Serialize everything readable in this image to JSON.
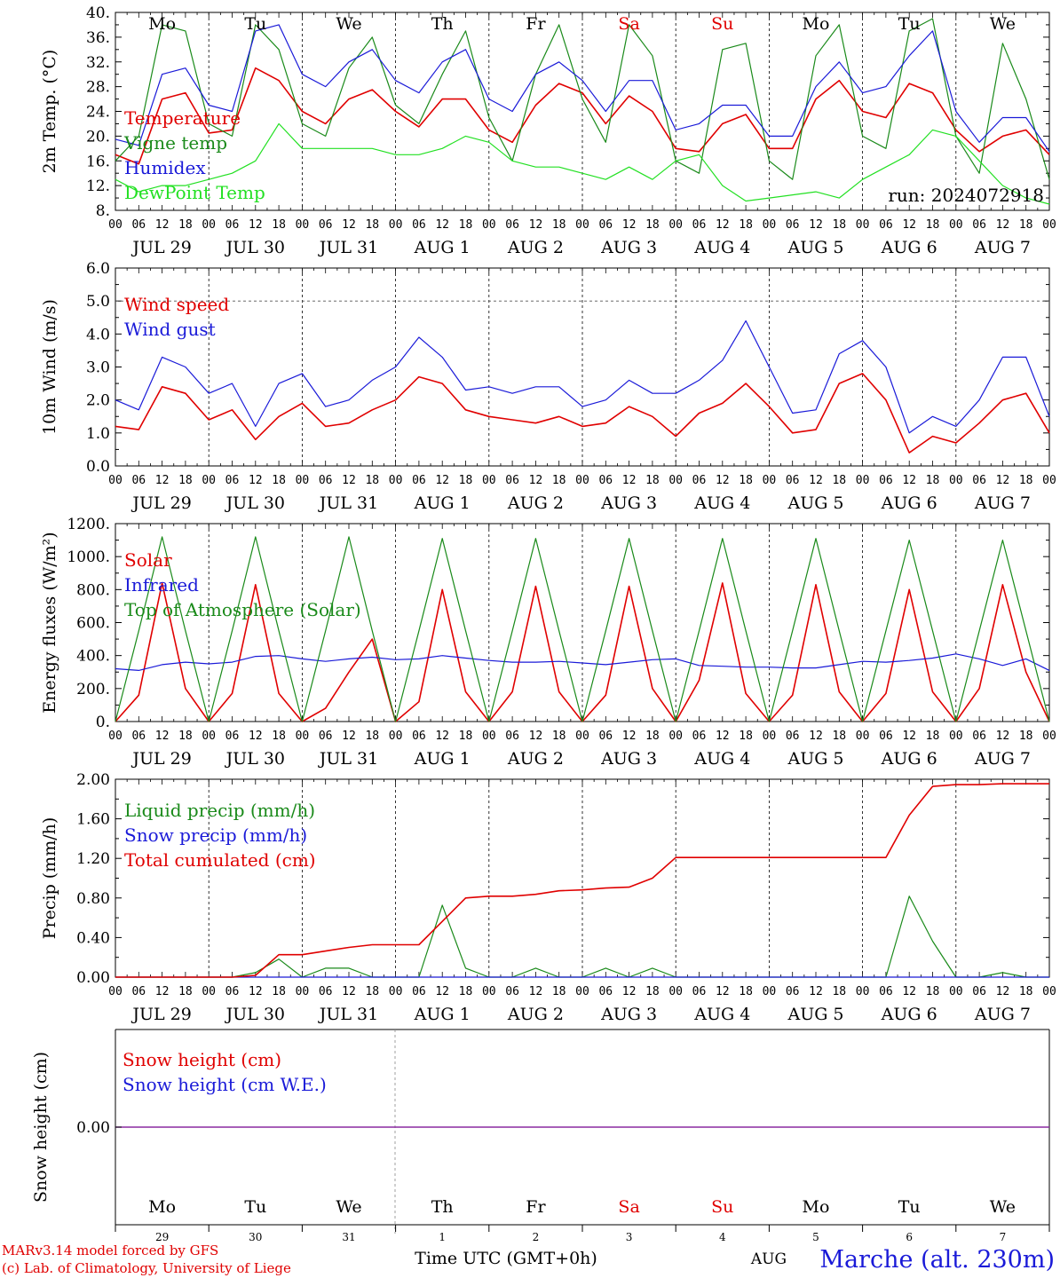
{
  "common": {
    "day_labels": [
      "Mo",
      "Tu",
      "We",
      "Th",
      "Fr",
      "Sa",
      "Su",
      "Mo",
      "Tu",
      "We"
    ],
    "weekend_indices": [
      5,
      6
    ],
    "date_labels": [
      "JUL 29",
      "JUL 30",
      "JUL 31",
      "AUG  1",
      "AUG  2",
      "AUG  3",
      "AUG  4",
      "AUG  5",
      "AUG  6",
      "AUG  7"
    ],
    "hour_ticks": [
      "00",
      "06",
      "12",
      "18"
    ],
    "bottom_day_numbers": [
      "29",
      "30",
      "31",
      "1",
      "2",
      "3",
      "4",
      "5",
      "6",
      "7"
    ],
    "bottom_month": "AUG",
    "xlabel": "Time UTC (GMT+0h)",
    "footer_model": "MARv3.14 model forced by GFS",
    "footer_copyright": "(c) Lab. of Climatology, University of Liege",
    "station": "Marche (alt. 230m)",
    "colors": {
      "red": "#e00000",
      "green": "#1a8a1a",
      "blue": "#1a1ad8",
      "lightgreen": "#22e022",
      "purple": "#8a2aa0"
    }
  },
  "chart_data": [
    {
      "type": "line",
      "ylabel": "2m Temp. (°C)",
      "ylim": [
        8,
        40
      ],
      "yticks": [
        "8.",
        "12.",
        "16.",
        "20.",
        "24.",
        "28.",
        "32.",
        "36.",
        "40."
      ],
      "annotation": "run: 2024072918",
      "x_hours": [
        0,
        6,
        12,
        18,
        24,
        30,
        36,
        42,
        48,
        54,
        60,
        66,
        72,
        78,
        84,
        90,
        96,
        102,
        108,
        114,
        120,
        126,
        132,
        138,
        144,
        150,
        156,
        162,
        168,
        174,
        180,
        186,
        192,
        198,
        204,
        210,
        216,
        222,
        228,
        234,
        240
      ],
      "series": [
        {
          "name": "Temperature",
          "color": "red",
          "values": [
            17,
            15.5,
            26,
            27,
            20.5,
            21,
            31,
            29,
            24,
            22,
            26,
            27.5,
            24,
            21.5,
            26,
            26,
            21,
            19,
            25,
            28.5,
            27,
            22,
            26.5,
            24,
            18,
            17.5,
            22,
            23.5,
            18,
            18,
            26,
            29,
            24,
            23,
            28.5,
            27,
            21,
            17.5,
            20,
            21,
            17
          ]
        },
        {
          "name": "Vigne temp",
          "color": "green",
          "values": [
            16,
            20,
            38,
            37,
            22,
            20,
            38,
            34,
            22,
            20,
            31,
            36,
            25,
            22,
            30,
            37,
            23,
            16,
            30,
            38,
            26,
            19,
            38,
            33,
            16,
            14,
            34,
            35,
            16,
            13,
            33,
            38,
            20,
            18,
            37,
            39,
            20,
            14,
            35,
            26,
            13
          ]
        },
        {
          "name": "Humidex",
          "color": "blue",
          "values": [
            19.5,
            18.5,
            30,
            31,
            25,
            24,
            37,
            38,
            30,
            28,
            32,
            34,
            29,
            27,
            32,
            34,
            26,
            24,
            30,
            32,
            29,
            24,
            29,
            29,
            21,
            22,
            25,
            25,
            20,
            20,
            28,
            32,
            27,
            28,
            33,
            37,
            24,
            19,
            23,
            23,
            17.5
          ]
        },
        {
          "name": "DewPoint Temp",
          "color": "lightgreen",
          "values": [
            13,
            11,
            12,
            12,
            13,
            14,
            16,
            22,
            18,
            18,
            18,
            18,
            17,
            17,
            18,
            20,
            19,
            16,
            15,
            15,
            14,
            13,
            15,
            13,
            16,
            17,
            12,
            9.5,
            10,
            10.5,
            11,
            10,
            13,
            15,
            17,
            21,
            20,
            16,
            12,
            10,
            9
          ]
        }
      ]
    },
    {
      "type": "line",
      "ylabel": "10m Wind (m/s)",
      "ylim": [
        0,
        6
      ],
      "yticks": [
        "0.0",
        "1.0",
        "2.0",
        "3.0",
        "4.0",
        "5.0",
        "6.0"
      ],
      "dashed_y": 5,
      "x_hours": [
        0,
        6,
        12,
        18,
        24,
        30,
        36,
        42,
        48,
        54,
        60,
        66,
        72,
        78,
        84,
        90,
        96,
        102,
        108,
        114,
        120,
        126,
        132,
        138,
        144,
        150,
        156,
        162,
        168,
        174,
        180,
        186,
        192,
        198,
        204,
        210,
        216,
        222,
        228,
        234,
        240
      ],
      "series": [
        {
          "name": "Wind speed",
          "color": "red",
          "values": [
            1.2,
            1.1,
            2.4,
            2.2,
            1.4,
            1.7,
            0.8,
            1.5,
            1.9,
            1.2,
            1.3,
            1.7,
            2.0,
            2.7,
            2.5,
            1.7,
            1.5,
            1.4,
            1.3,
            1.5,
            1.2,
            1.3,
            1.8,
            1.5,
            0.9,
            1.6,
            1.9,
            2.5,
            1.8,
            1.0,
            1.1,
            2.5,
            2.8,
            2.0,
            0.4,
            0.9,
            0.7,
            1.3,
            2.0,
            2.2,
            1.0
          ]
        },
        {
          "name": "Wind gust",
          "color": "blue",
          "values": [
            2.0,
            1.7,
            3.3,
            3.0,
            2.2,
            2.5,
            1.2,
            2.5,
            2.8,
            1.8,
            2.0,
            2.6,
            3.0,
            3.9,
            3.3,
            2.3,
            2.4,
            2.2,
            2.4,
            2.4,
            1.8,
            2.0,
            2.6,
            2.2,
            2.2,
            2.6,
            3.2,
            4.4,
            3.0,
            1.6,
            1.7,
            3.4,
            3.8,
            3.0,
            1.0,
            1.5,
            1.2,
            2.0,
            3.3,
            3.3,
            1.5
          ]
        }
      ]
    },
    {
      "type": "line",
      "ylabel": "Energy fluxes (W/m²)",
      "ylim": [
        0,
        1200
      ],
      "yticks": [
        "0.",
        "200.",
        "400.",
        "600.",
        "800.",
        "1000.",
        "1200."
      ],
      "x_hours": [
        0,
        6,
        12,
        18,
        24,
        30,
        36,
        42,
        48,
        54,
        60,
        66,
        72,
        78,
        84,
        90,
        96,
        102,
        108,
        114,
        120,
        126,
        132,
        138,
        144,
        150,
        156,
        162,
        168,
        174,
        180,
        186,
        192,
        198,
        204,
        210,
        216,
        222,
        228,
        234,
        240
      ],
      "series": [
        {
          "name": "Solar",
          "color": "red",
          "values": [
            0,
            160,
            840,
            200,
            0,
            170,
            830,
            170,
            0,
            80,
            300,
            500,
            0,
            120,
            800,
            180,
            0,
            180,
            820,
            180,
            0,
            160,
            820,
            200,
            0,
            250,
            840,
            170,
            0,
            160,
            830,
            180,
            0,
            170,
            800,
            180,
            0,
            200,
            830,
            300,
            0
          ]
        },
        {
          "name": "Infrared",
          "color": "blue",
          "values": [
            320,
            310,
            345,
            360,
            350,
            360,
            395,
            400,
            380,
            365,
            380,
            390,
            375,
            380,
            400,
            385,
            370,
            360,
            360,
            365,
            355,
            345,
            360,
            375,
            380,
            340,
            335,
            330,
            330,
            325,
            325,
            345,
            365,
            360,
            370,
            385,
            410,
            380,
            340,
            380,
            310
          ]
        },
        {
          "name": "Top of Atmosphere (Solar)",
          "color": "green",
          "values": [
            0,
            550,
            1120,
            550,
            0,
            550,
            1120,
            550,
            0,
            550,
            1120,
            550,
            0,
            550,
            1110,
            550,
            0,
            550,
            1110,
            550,
            0,
            550,
            1110,
            550,
            0,
            550,
            1110,
            550,
            0,
            550,
            1110,
            550,
            0,
            550,
            1100,
            550,
            0,
            550,
            1100,
            550,
            0
          ]
        }
      ]
    },
    {
      "type": "line",
      "ylabel": "Precip (mm/h)",
      "ylim": [
        0,
        2.2
      ],
      "yticks": [
        "0.00",
        "0.40",
        "0.80",
        "1.20",
        "1.60",
        "2.00"
      ],
      "x_hours": [
        0,
        6,
        12,
        18,
        24,
        30,
        36,
        42,
        48,
        54,
        60,
        66,
        72,
        78,
        84,
        90,
        96,
        102,
        108,
        114,
        120,
        126,
        132,
        138,
        144,
        150,
        156,
        162,
        168,
        174,
        180,
        186,
        192,
        198,
        204,
        210,
        216,
        222,
        228,
        234,
        240
      ],
      "series": [
        {
          "name": "Liquid precip (mm/h)",
          "color": "green",
          "values": [
            0,
            0,
            0,
            0,
            0,
            0,
            0.05,
            0.2,
            0,
            0.1,
            0.1,
            0,
            0,
            0,
            0.8,
            0.1,
            0,
            0,
            0.1,
            0,
            0,
            0.1,
            0,
            0.1,
            0,
            0,
            0,
            0,
            0,
            0,
            0,
            0,
            0,
            0,
            0.9,
            0.4,
            0,
            0,
            0.05,
            0,
            0
          ]
        },
        {
          "name": "Snow precip (mm/h)",
          "color": "blue",
          "values": [
            0,
            0,
            0,
            0,
            0,
            0,
            0,
            0,
            0,
            0,
            0,
            0,
            0,
            0,
            0,
            0,
            0,
            0,
            0,
            0,
            0,
            0,
            0,
            0,
            0,
            0,
            0,
            0,
            0,
            0,
            0,
            0,
            0,
            0,
            0,
            0,
            0,
            0,
            0,
            0,
            0
          ]
        },
        {
          "name": "Total cumulated (cm)",
          "color": "red",
          "values": [
            0,
            0,
            0,
            0,
            0,
            0,
            0.02,
            0.25,
            0.25,
            0.29,
            0.33,
            0.36,
            0.36,
            0.36,
            0.62,
            0.88,
            0.9,
            0.9,
            0.92,
            0.96,
            0.97,
            0.99,
            1.0,
            1.1,
            1.33,
            1.33,
            1.33,
            1.33,
            1.33,
            1.33,
            1.33,
            1.33,
            1.33,
            1.33,
            1.8,
            2.12,
            2.14,
            2.14,
            2.15,
            2.15,
            2.15
          ]
        }
      ]
    },
    {
      "type": "line",
      "ylabel": "Snow height (cm)",
      "ylim": [
        -1,
        1
      ],
      "yticks": [
        "0.00"
      ],
      "series": [
        {
          "name": "Snow height (cm)",
          "color": "red",
          "values": [
            0,
            0
          ]
        },
        {
          "name": "Snow height (cm W.E.)",
          "color": "blue",
          "values": [
            0,
            0
          ]
        }
      ]
    }
  ]
}
